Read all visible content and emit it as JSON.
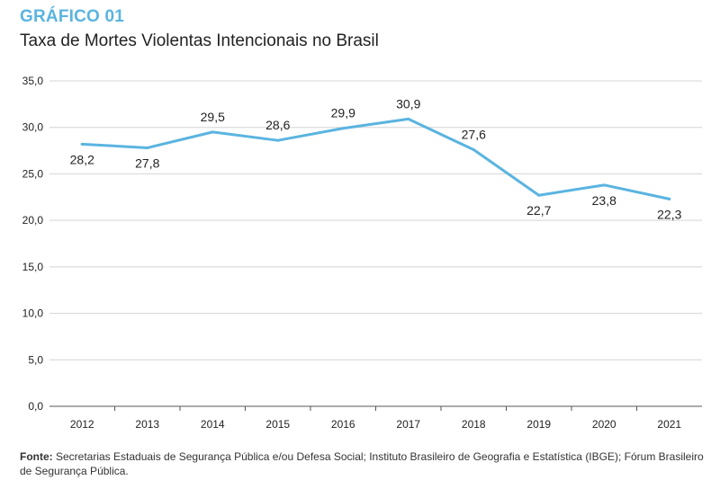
{
  "header": {
    "kicker": "GRÁFICO 01",
    "title": "Taxa de Mortes Violentas Intencionais no Brasil"
  },
  "source": {
    "label": "Fonte:",
    "text": " Secretarias Estaduais de Segurança Pública e/ou Defesa Social; Instituto Brasileiro de Geografia e Estatística (IBGE); Fórum Brasileiro de Segurança Pública."
  },
  "colors": {
    "line": "#5ab4e0",
    "grid": "#d4d4d4",
    "accent": "#5ab4e0"
  },
  "chart_data": {
    "type": "line",
    "title": "Taxa de Mortes Violentas Intencionais no Brasil",
    "xlabel": "",
    "ylabel": "",
    "categories": [
      "2012",
      "2013",
      "2014",
      "2015",
      "2016",
      "2017",
      "2018",
      "2019",
      "2020",
      "2021"
    ],
    "series": [
      {
        "values": [
          28.2,
          27.8,
          29.5,
          28.6,
          29.9,
          30.9,
          27.6,
          22.7,
          23.8,
          22.3
        ],
        "labels": [
          "28,2",
          "27,8",
          "29,5",
          "28,6",
          "29,9",
          "30,9",
          "27,6",
          "22,7",
          "23,8",
          "22,3"
        ],
        "label_positions": [
          "below",
          "below",
          "above",
          "above",
          "above",
          "above",
          "above",
          "below",
          "below",
          "below"
        ]
      }
    ],
    "ylim": [
      0,
      35
    ],
    "yticks": [
      0,
      5,
      10,
      15,
      20,
      25,
      30,
      35
    ],
    "ytick_labels": [
      "0,0",
      "5,0",
      "10,0",
      "15,0",
      "20,0",
      "25,0",
      "30,0",
      "35,0"
    ],
    "grid": true,
    "legend": "none"
  }
}
